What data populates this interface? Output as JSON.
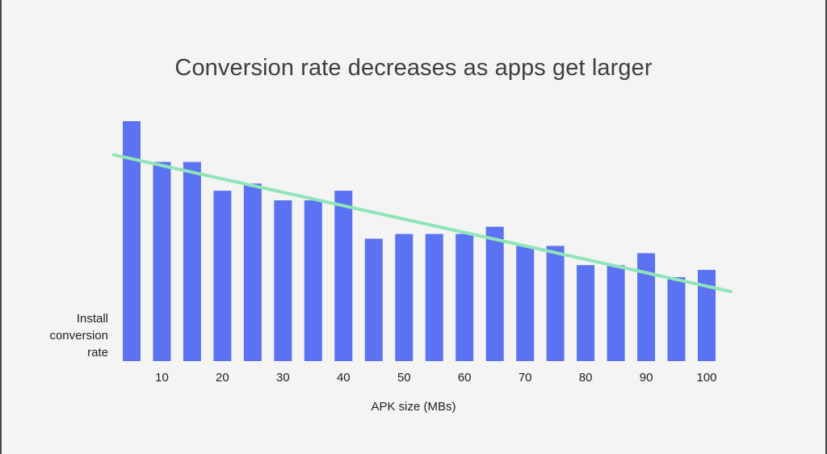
{
  "colors": {
    "background": "#f4f4f4",
    "bar": "#5b72f2",
    "trendline": "#8fe5b8",
    "text": "#202124",
    "title": "#3c4043"
  },
  "chart_data": {
    "type": "bar",
    "title": "Conversion rate decreases as apps get larger",
    "xlabel": "APK size (MBs)",
    "ylabel": "Install conversion rate",
    "ylabel_lines": [
      "Install",
      "conversion",
      "rate"
    ],
    "x": [
      5,
      10,
      15,
      20,
      25,
      30,
      35,
      40,
      45,
      50,
      55,
      60,
      65,
      70,
      75,
      80,
      85,
      90,
      95,
      100
    ],
    "values": [
      100,
      83,
      83,
      71,
      74,
      67,
      67,
      71,
      51,
      53,
      53,
      53,
      56,
      48,
      48,
      40,
      40,
      45,
      35,
      38
    ],
    "xticks": [
      10,
      20,
      30,
      40,
      50,
      60,
      70,
      80,
      90,
      100
    ],
    "ylim": [
      0,
      100
    ],
    "y_tick_labels_shown": false,
    "grid": false,
    "trendline": {
      "type": "linear",
      "start": {
        "x": 2,
        "y": 86
      },
      "end": {
        "x": 104,
        "y": 29
      }
    }
  }
}
